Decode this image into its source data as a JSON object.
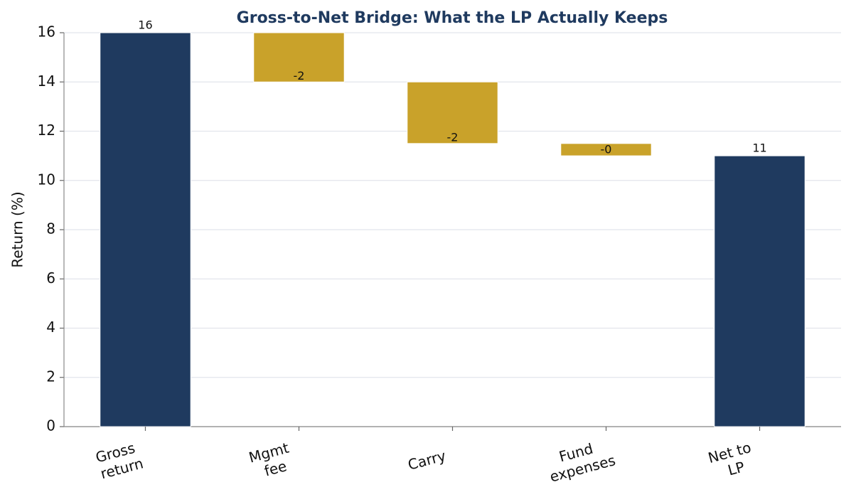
{
  "chart_data": {
    "type": "waterfall",
    "title": "Gross-to-Net Bridge: What the LP Actually Keeps",
    "y_label": "Return (%)",
    "categories": [
      "Gross\nreturn",
      "Mgmt\nfee",
      "Carry",
      "Fund\nexpenses",
      "Net to\nLP"
    ],
    "measures": [
      "absolute",
      "relative",
      "relative",
      "relative",
      "total"
    ],
    "values": [
      16,
      -2,
      -2.5,
      -0.5,
      11
    ],
    "value_labels": [
      "16",
      "-2",
      "-2",
      "-0",
      "11"
    ],
    "colors": [
      "#1f3a5f",
      "#c9a22a",
      "#c9a22a",
      "#c9a22a",
      "#1f3a5f"
    ],
    "ylim": [
      0,
      16
    ],
    "yticks": [
      0,
      2,
      4,
      6,
      8,
      10,
      12,
      14,
      16
    ],
    "grid": true
  }
}
